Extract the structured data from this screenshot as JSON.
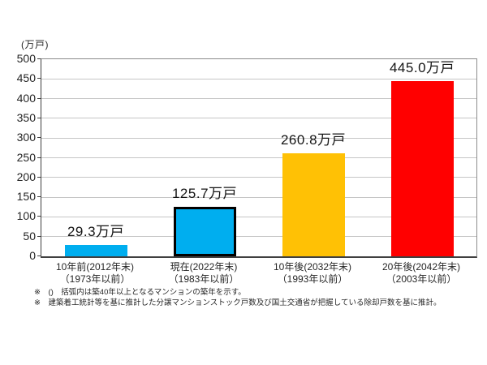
{
  "unit_label": "(万戸)",
  "chart_data": {
    "type": "bar",
    "title": "",
    "xlabel": "",
    "ylabel": "(万戸)",
    "ylim": [
      0,
      500
    ],
    "ytick_step": 50,
    "yticks": [
      0,
      50,
      100,
      150,
      200,
      250,
      300,
      350,
      400,
      450,
      500
    ],
    "grid": true,
    "legend_position": "none",
    "categories": [
      "10年前(2012年末)",
      "現在(2022年末)",
      "10年後(2032年末)",
      "20年後(2042年末)"
    ],
    "sub_categories": [
      "（1973年以前）",
      "（1983年以前）",
      "（1993年以前）",
      "（2003年以前）"
    ],
    "values": [
      29.3,
      125.7,
      260.8,
      445.0
    ],
    "value_labels": [
      "29.3万戸",
      "125.7万戸",
      "260.8万戸",
      "445.0万戸"
    ],
    "bar_colors": [
      "#00AEEF",
      "#00AEEF",
      "#FFC105",
      "#FF0000"
    ],
    "highlight_index": 1,
    "highlight_border_color": "#000000"
  },
  "footnotes": [
    "※　()　括弧内は築40年以上となるマンションの築年を示す。",
    "※　建築着工統計等を基に推計した分譲マンションストック戸数及び国土交通省が把握している除却戸数を基に推計。"
  ],
  "colors": {
    "background": "#ffffff",
    "gridline": "#c6c6c6",
    "axis": "#404040",
    "text": "#262626",
    "bar_blue": "#00AEEF",
    "bar_yellow": "#FFC105",
    "bar_red": "#FF0000"
  }
}
